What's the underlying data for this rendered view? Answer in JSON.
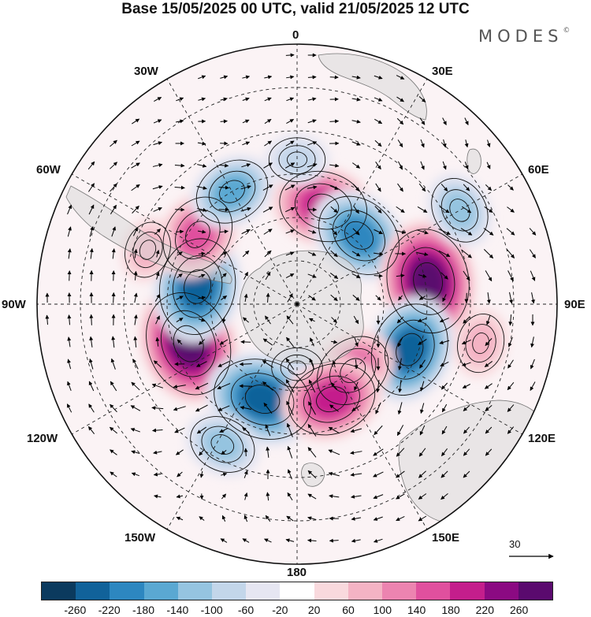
{
  "title": "Base 15/05/2025 00 UTC, valid 21/05/2025 12 UTC",
  "brand": {
    "name": "MODES",
    "mark": "©"
  },
  "longitude_labels": {
    "lon_0": "0",
    "lon_30e": "30E",
    "lon_60e": "60E",
    "lon_90e": "90E",
    "lon_120e": "120E",
    "lon_150e": "150E",
    "lon_180": "180",
    "lon_150w": "150W",
    "lon_120w": "120W",
    "lon_90w": "90W",
    "lon_60w": "60W",
    "lon_30w": "30W"
  },
  "reference_vector": {
    "label": "30"
  },
  "colorbar": {
    "colors": [
      "#0b3a5e",
      "#11629a",
      "#2d87c0",
      "#5aa8d2",
      "#95c4e0",
      "#c3d6ea",
      "#e6e6f2",
      "#ffffff",
      "#f9d9dd",
      "#f4b3c4",
      "#ec84b0",
      "#e0509e",
      "#c41e8c",
      "#8b0a82",
      "#5a0a6e"
    ],
    "ticks": [
      "-260",
      "-220",
      "-180",
      "-140",
      "-100",
      "-60",
      "-20",
      "20",
      "60",
      "100",
      "140",
      "180",
      "220",
      "260"
    ]
  },
  "anomalies": [
    {
      "lon": 15,
      "lat": -55,
      "value": 200
    },
    {
      "lon": 42,
      "lat": -58,
      "value": -200
    },
    {
      "lon": 80,
      "lat": -44,
      "value": 260
    },
    {
      "lon": 112,
      "lat": -48,
      "value": -220
    },
    {
      "lon": 140,
      "lat": -60,
      "value": 160
    },
    {
      "lon": 180,
      "lat": -68,
      "value": -60
    },
    {
      "lon": -110,
      "lat": -50,
      "value": 260
    },
    {
      "lon": -160,
      "lat": -55,
      "value": -240
    },
    {
      "lon": -80,
      "lat": -55,
      "value": -230
    },
    {
      "lon": -55,
      "lat": -48,
      "value": 170
    },
    {
      "lon": -30,
      "lat": -45,
      "value": -150
    },
    {
      "lon": 160,
      "lat": -55,
      "value": 200
    },
    {
      "lon": -152,
      "lat": -35,
      "value": -120
    },
    {
      "lon": 102,
      "lat": -25,
      "value": 90
    },
    {
      "lon": 60,
      "lat": -25,
      "value": -120
    },
    {
      "lon": -70,
      "lat": -35,
      "value": 80
    },
    {
      "lon": 0,
      "lat": -40,
      "value": -80
    }
  ]
}
